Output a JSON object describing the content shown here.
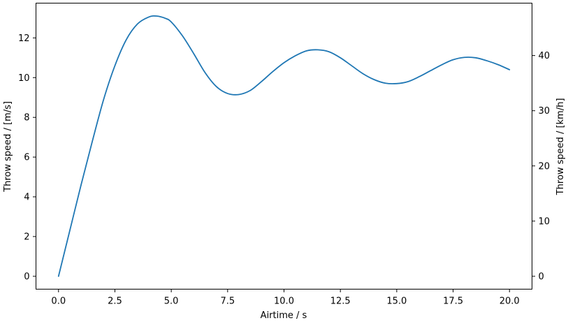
{
  "chart_data": {
    "type": "line",
    "xlabel": "Airtime / s",
    "ylabel": "Throw speed / [m/s]",
    "ylabel_right": "Throw speed / [km/h]",
    "xlim": [
      -1.0,
      21.0
    ],
    "ylim": [
      -0.65,
      13.75
    ],
    "ylim_right_kmh": [
      -2.34,
      49.5
    ],
    "x_ticks": [
      0.0,
      2.5,
      5.0,
      7.5,
      10.0,
      12.5,
      15.0,
      17.5,
      20.0
    ],
    "x_tick_labels": [
      "0.0",
      "2.5",
      "5.0",
      "7.5",
      "10.0",
      "12.5",
      "15.0",
      "17.5",
      "20.0"
    ],
    "y_ticks": [
      0,
      2,
      4,
      6,
      8,
      10,
      12
    ],
    "y_tick_labels": [
      "0",
      "2",
      "4",
      "6",
      "8",
      "10",
      "12"
    ],
    "y_right_ticks": [
      0,
      10,
      20,
      30,
      40
    ],
    "y_right_tick_labels": [
      "0",
      "10",
      "20",
      "30",
      "40"
    ],
    "grid": false,
    "series": [
      {
        "color": "#1f77b4",
        "x": [
          0.0,
          0.5,
          1.0,
          1.5,
          2.0,
          2.5,
          3.0,
          3.5,
          4.0,
          4.35,
          4.75,
          5.0,
          5.5,
          6.0,
          6.5,
          7.0,
          7.5,
          8.0,
          8.5,
          9.0,
          9.5,
          10.0,
          10.5,
          11.0,
          11.5,
          12.0,
          12.5,
          13.0,
          13.5,
          14.0,
          14.5,
          15.0,
          15.5,
          16.0,
          16.5,
          17.0,
          17.5,
          18.0,
          18.5,
          19.0,
          19.5,
          20.0
        ],
        "y": [
          0.0,
          2.3,
          4.6,
          6.8,
          8.9,
          10.6,
          11.9,
          12.7,
          13.05,
          13.1,
          12.98,
          12.8,
          12.1,
          11.2,
          10.25,
          9.55,
          9.2,
          9.15,
          9.35,
          9.8,
          10.3,
          10.75,
          11.1,
          11.35,
          11.4,
          11.3,
          11.0,
          10.6,
          10.2,
          9.9,
          9.72,
          9.7,
          9.8,
          10.05,
          10.35,
          10.65,
          10.9,
          11.02,
          11.0,
          10.85,
          10.65,
          10.4
        ]
      }
    ]
  }
}
